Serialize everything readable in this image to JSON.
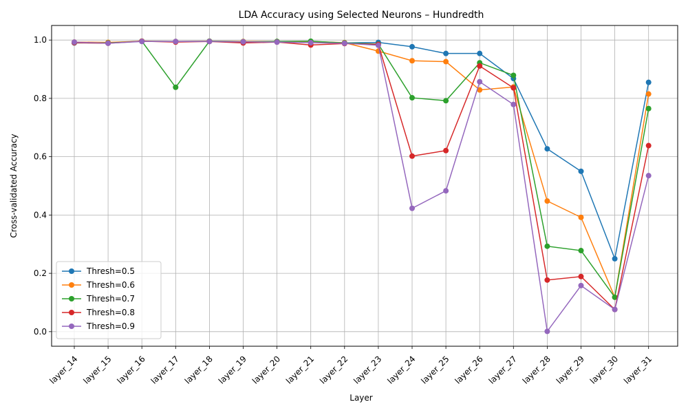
{
  "chart_data": {
    "type": "line",
    "title": "LDA Accuracy using Selected Neurons – Hundredth",
    "xlabel": "Layer",
    "ylabel": "Cross-validated Accuracy",
    "ylim": [
      -0.05,
      1.05
    ],
    "yticks": [
      "0.0",
      "0.2",
      "0.4",
      "0.6",
      "0.8",
      "1.0"
    ],
    "grid": true,
    "legend_position": "lower-left",
    "categories": [
      "layer_14",
      "layer_15",
      "layer_16",
      "layer_17",
      "layer_18",
      "layer_19",
      "layer_20",
      "layer_21",
      "layer_22",
      "layer_23",
      "layer_24",
      "layer_25",
      "layer_26",
      "layer_27",
      "layer_28",
      "layer_29",
      "layer_30",
      "layer_31"
    ],
    "series": [
      {
        "name": "Thresh=0.5",
        "color": "#1f77b4",
        "values": [
          0.99,
          0.99,
          0.996,
          0.995,
          0.996,
          0.995,
          0.995,
          0.995,
          0.99,
          0.992,
          0.977,
          0.954,
          0.954,
          0.868,
          0.627,
          0.55,
          0.25,
          0.855
        ]
      },
      {
        "name": "Thresh=0.6",
        "color": "#ff7f0e",
        "values": [
          0.993,
          0.992,
          0.996,
          0.995,
          0.996,
          0.995,
          0.995,
          0.995,
          0.991,
          0.962,
          0.929,
          0.926,
          0.829,
          0.839,
          0.448,
          0.392,
          0.118,
          0.815
        ]
      },
      {
        "name": "Thresh=0.7",
        "color": "#2ca02c",
        "values": [
          0.991,
          0.99,
          0.996,
          0.838,
          0.996,
          0.994,
          0.995,
          0.996,
          0.99,
          0.986,
          0.802,
          0.792,
          0.922,
          0.879,
          0.293,
          0.278,
          0.118,
          0.765
        ]
      },
      {
        "name": "Thresh=0.8",
        "color": "#d62728",
        "values": [
          0.991,
          0.989,
          0.996,
          0.993,
          0.995,
          0.99,
          0.993,
          0.983,
          0.988,
          0.985,
          0.602,
          0.621,
          0.911,
          0.836,
          0.177,
          0.189,
          0.076,
          0.638
        ]
      },
      {
        "name": "Thresh=0.9",
        "color": "#9467bd",
        "values": [
          0.993,
          0.989,
          0.995,
          0.995,
          0.995,
          0.994,
          0.993,
          0.991,
          0.989,
          0.982,
          0.423,
          0.483,
          0.857,
          0.779,
          0.001,
          0.158,
          0.076,
          0.535
        ]
      }
    ]
  }
}
